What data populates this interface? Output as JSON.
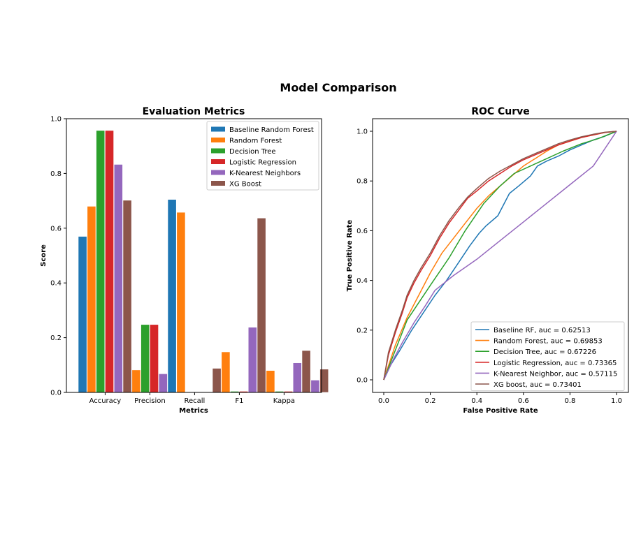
{
  "figure_title": "Model Comparison",
  "chart_data": [
    {
      "type": "bar",
      "title": "Evaluation Metrics",
      "xlabel": "Metrics",
      "ylabel": "Score",
      "ylim": [
        0,
        1.0
      ],
      "yticks": [
        "0.0",
        "0.2",
        "0.4",
        "0.6",
        "0.8",
        "1.0"
      ],
      "categories": [
        "Accuracy",
        "Precision",
        "Recall",
        "F1",
        "Kappa"
      ],
      "legend_position": "top-right",
      "series": [
        {
          "name": "Baseline Random Forest",
          "color": "#1f77b4",
          "values": [
            0.57,
            0.0,
            0.705,
            0.0,
            0.0
          ]
        },
        {
          "name": "Random Forest",
          "color": "#ff7f0e",
          "values": [
            0.68,
            0.082,
            0.658,
            0.148,
            0.08
          ]
        },
        {
          "name": "Decision Tree",
          "color": "#2ca02c",
          "values": [
            0.957,
            0.248,
            0.0,
            0.004,
            0.004
          ]
        },
        {
          "name": "Logistic Regression",
          "color": "#d62728",
          "values": [
            0.957,
            0.248,
            0.0,
            0.004,
            0.004
          ]
        },
        {
          "name": "K-Nearest Neighbors",
          "color": "#9467bd",
          "values": [
            0.833,
            0.068,
            0.0,
            0.238,
            0.108
          ]
        },
        {
          "name": "XG Boost",
          "color": "#8c564b",
          "values": [
            0.702,
            0.0,
            0.088,
            0.637,
            0.153
          ]
        }
      ],
      "extra_bars": [
        {
          "category": "Kappa",
          "color": "#9467bd",
          "value": 0.045
        },
        {
          "category": "Kappa",
          "color": "#8c564b",
          "value": 0.085
        }
      ]
    },
    {
      "type": "line",
      "title": "ROC Curve",
      "xlabel": "False Positive Rate",
      "ylabel": "True Positive Rate",
      "xlim": [
        0,
        1.0
      ],
      "ylim": [
        0,
        1.0
      ],
      "xticks": [
        "0.0",
        "0.2",
        "0.4",
        "0.6",
        "0.8",
        "1.0"
      ],
      "yticks": [
        "0.0",
        "0.2",
        "0.4",
        "0.6",
        "0.8",
        "1.0"
      ],
      "legend_position": "bottom-right",
      "series": [
        {
          "name": "Baseline RF, auc = 0.62513",
          "color": "#1f77b4",
          "x": [
            0,
            0.03,
            0.07,
            0.12,
            0.17,
            0.22,
            0.27,
            0.32,
            0.37,
            0.41,
            0.44,
            0.49,
            0.54,
            0.58,
            0.63,
            0.66,
            0.7,
            0.75,
            0.8,
            0.85,
            0.9,
            0.95,
            1.0
          ],
          "y": [
            0,
            0.06,
            0.12,
            0.2,
            0.27,
            0.34,
            0.4,
            0.47,
            0.54,
            0.59,
            0.62,
            0.66,
            0.75,
            0.78,
            0.82,
            0.86,
            0.88,
            0.9,
            0.925,
            0.945,
            0.965,
            0.98,
            1.0
          ]
        },
        {
          "name": "Random Forest, auc = 0.69853",
          "color": "#ff7f0e",
          "x": [
            0,
            0.05,
            0.1,
            0.15,
            0.2,
            0.25,
            0.3,
            0.35,
            0.4,
            0.45,
            0.5,
            0.55,
            0.6,
            0.65,
            0.7,
            0.75,
            0.8,
            0.85,
            0.9,
            0.95,
            1.0
          ],
          "y": [
            0,
            0.14,
            0.25,
            0.34,
            0.43,
            0.51,
            0.57,
            0.63,
            0.69,
            0.74,
            0.78,
            0.82,
            0.86,
            0.89,
            0.92,
            0.945,
            0.96,
            0.975,
            0.985,
            0.995,
            1.0
          ]
        },
        {
          "name": "Decision Tree, auc = 0.67226",
          "color": "#2ca02c",
          "x": [
            0,
            0.1,
            0.2,
            0.28,
            0.35,
            0.43,
            0.5,
            0.56,
            0.63,
            0.7,
            0.77,
            0.85,
            0.92,
            1.0
          ],
          "y": [
            0,
            0.24,
            0.38,
            0.49,
            0.6,
            0.71,
            0.78,
            0.83,
            0.86,
            0.89,
            0.92,
            0.95,
            0.97,
            1.0
          ]
        },
        {
          "name": "Logistic Regression, auc = 0.73365",
          "color": "#d62728",
          "x": [
            0,
            0.02,
            0.05,
            0.08,
            0.1,
            0.13,
            0.16,
            0.2,
            0.24,
            0.28,
            0.32,
            0.36,
            0.4,
            0.45,
            0.5,
            0.55,
            0.6,
            0.65,
            0.7,
            0.75,
            0.8,
            0.85,
            0.9,
            0.95,
            1.0
          ],
          "y": [
            0,
            0.1,
            0.19,
            0.27,
            0.33,
            0.39,
            0.44,
            0.5,
            0.57,
            0.63,
            0.68,
            0.73,
            0.76,
            0.8,
            0.83,
            0.86,
            0.885,
            0.905,
            0.925,
            0.945,
            0.96,
            0.975,
            0.985,
            0.995,
            1.0
          ]
        },
        {
          "name": "K-Nearest Neighbor, auc = 0.57115",
          "color": "#9467bd",
          "x": [
            0,
            0.04,
            0.08,
            0.13,
            0.18,
            0.22,
            0.3,
            0.4,
            0.5,
            0.6,
            0.7,
            0.8,
            0.9,
            1.0
          ],
          "y": [
            0,
            0.08,
            0.15,
            0.23,
            0.3,
            0.36,
            0.42,
            0.485,
            0.56,
            0.635,
            0.71,
            0.785,
            0.86,
            1.0
          ]
        },
        {
          "name": "XG boost, auc = 0.73401",
          "color": "#8c564b",
          "x": [
            0,
            0.02,
            0.05,
            0.08,
            0.1,
            0.13,
            0.16,
            0.2,
            0.24,
            0.28,
            0.32,
            0.36,
            0.4,
            0.45,
            0.5,
            0.55,
            0.6,
            0.65,
            0.7,
            0.75,
            0.8,
            0.85,
            0.9,
            0.95,
            1.0
          ],
          "y": [
            0,
            0.11,
            0.2,
            0.28,
            0.34,
            0.4,
            0.45,
            0.51,
            0.58,
            0.64,
            0.69,
            0.735,
            0.77,
            0.81,
            0.84,
            0.865,
            0.89,
            0.91,
            0.93,
            0.95,
            0.965,
            0.978,
            0.988,
            0.996,
            1.0
          ]
        }
      ]
    }
  ]
}
